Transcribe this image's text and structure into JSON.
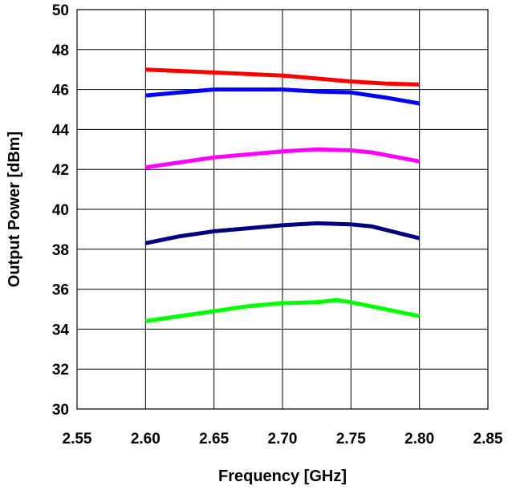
{
  "chart_data": {
    "type": "line",
    "title": "",
    "xlabel": "Frequency [GHz]",
    "ylabel": "Output Power [dBm]",
    "xlim": [
      2.55,
      2.85
    ],
    "ylim": [
      30,
      50
    ],
    "xticks": [
      "2.55",
      "2.60",
      "2.65",
      "2.70",
      "2.75",
      "2.80",
      "2.85"
    ],
    "yticks": [
      "30",
      "32",
      "34",
      "36",
      "38",
      "40",
      "42",
      "44",
      "46",
      "48",
      "50"
    ],
    "grid": true,
    "legend": "none",
    "series": [
      {
        "color": "#ff0000",
        "x": [
          2.6,
          2.65,
          2.7,
          2.725,
          2.75,
          2.775,
          2.8
        ],
        "y": [
          47.0,
          46.85,
          46.7,
          46.55,
          46.4,
          46.3,
          46.25
        ]
      },
      {
        "color": "#0000ff",
        "x": [
          2.6,
          2.625,
          2.65,
          2.675,
          2.7,
          2.725,
          2.75,
          2.775,
          2.8
        ],
        "y": [
          45.7,
          45.85,
          46.0,
          46.0,
          46.0,
          45.9,
          45.85,
          45.6,
          45.3
        ]
      },
      {
        "color": "#ff00ff",
        "x": [
          2.6,
          2.65,
          2.7,
          2.725,
          2.75,
          2.765,
          2.8
        ],
        "y": [
          42.1,
          42.6,
          42.9,
          43.0,
          42.95,
          42.85,
          42.4
        ]
      },
      {
        "color": "#000080",
        "x": [
          2.6,
          2.625,
          2.65,
          2.7,
          2.725,
          2.75,
          2.765,
          2.8
        ],
        "y": [
          38.3,
          38.65,
          38.9,
          39.2,
          39.3,
          39.25,
          39.15,
          38.55
        ]
      },
      {
        "color": "#00ff00",
        "x": [
          2.6,
          2.65,
          2.675,
          2.7,
          2.725,
          2.74,
          2.75,
          2.8
        ],
        "y": [
          34.4,
          34.9,
          35.15,
          35.3,
          35.35,
          35.45,
          35.35,
          34.65
        ]
      }
    ]
  }
}
